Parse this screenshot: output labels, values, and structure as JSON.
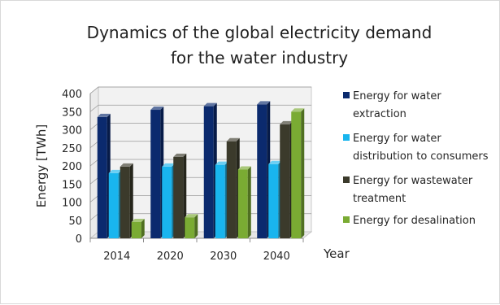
{
  "chart_data": {
    "type": "bar",
    "title_lines": [
      "Dynamics of the global electricity demand",
      "for the water industry"
    ],
    "xlabel": "Year",
    "ylabel": "Energy [TWh]",
    "categories": [
      "2014",
      "2020",
      "2030",
      "2040"
    ],
    "ylim": [
      0,
      400
    ],
    "yticks": [
      0,
      50,
      100,
      150,
      200,
      250,
      300,
      350,
      400
    ],
    "grid": true,
    "legend_position": "right",
    "series": [
      {
        "name": "Energy for water extraction",
        "legend_lines": [
          "Energy for water",
          "extraction"
        ],
        "color": "#0b2a6e",
        "values": [
          335,
          355,
          365,
          370
        ]
      },
      {
        "name": "Energy for water distribution to consumers",
        "legend_lines": [
          "Energy for water",
          "distribution to consumers"
        ],
        "color": "#19b5ee",
        "values": [
          180,
          198,
          203,
          205
        ]
      },
      {
        "name": "Energy for wastewater treatment",
        "legend_lines": [
          "Energy for wastewater",
          "treatment"
        ],
        "color": "#3b3a2b",
        "values": [
          198,
          225,
          268,
          315
        ]
      },
      {
        "name": "Energy for desalination",
        "legend_lines": [
          "Energy for desalination"
        ],
        "color": "#7aab33",
        "values": [
          45,
          58,
          190,
          350
        ]
      }
    ]
  }
}
